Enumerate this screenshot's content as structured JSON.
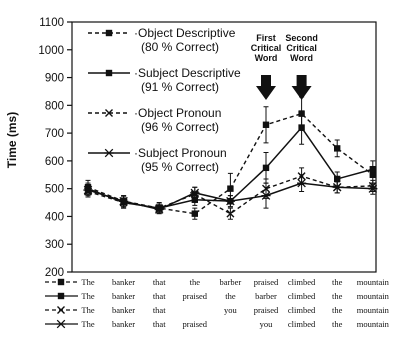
{
  "chart_data": {
    "type": "line",
    "ylabel": "Time (ms)",
    "ylim": [
      200,
      1100
    ],
    "yticks": [
      200,
      300,
      400,
      500,
      600,
      700,
      800,
      900,
      1000,
      1100
    ],
    "x": [
      1,
      2,
      3,
      4,
      5,
      6,
      7,
      8,
      9
    ],
    "grid": false,
    "legend_position": "top-left",
    "annotations": [
      {
        "text_lines": [
          "First",
          "Critical",
          "Word"
        ],
        "x": 6
      },
      {
        "text_lines": [
          "Second",
          "Critical",
          "Word"
        ],
        "x": 7
      }
    ],
    "series": [
      {
        "name": "Object Descriptive",
        "accuracy": "(80 % Correct)",
        "style": "dashed",
        "marker": "square",
        "values": [
          505,
          455,
          430,
          410,
          500,
          730,
          770,
          645,
          550
        ],
        "errors": [
          25,
          20,
          20,
          20,
          55,
          65,
          60,
          30,
          30
        ],
        "words": [
          "The",
          "banker",
          "that",
          "the",
          "barber",
          "praised",
          "climbed",
          "the",
          "mountain"
        ]
      },
      {
        "name": "Subject Descriptive",
        "accuracy": "(91 % Correct)",
        "style": "solid",
        "marker": "square",
        "values": [
          500,
          450,
          430,
          460,
          455,
          575,
          720,
          535,
          570
        ],
        "errors": [
          20,
          20,
          15,
          20,
          20,
          55,
          60,
          25,
          30
        ],
        "words": [
          "The",
          "banker",
          "that",
          "praised",
          "the",
          "barber",
          "climbed",
          "the",
          "mountain"
        ]
      },
      {
        "name": "Object Pronoun",
        "accuracy": "(96 % Correct)",
        "style": "dashed",
        "marker": "x",
        "values": [
          490,
          450,
          430,
          480,
          410,
          500,
          545,
          505,
          510
        ],
        "errors": [
          20,
          20,
          15,
          25,
          20,
          35,
          30,
          20,
          20
        ],
        "words": [
          "The",
          "banker",
          "that",
          "",
          "you",
          "praised",
          "climbed",
          "the",
          "mountain"
        ]
      },
      {
        "name": "Subject Pronoun",
        "accuracy": "(95 % Correct)",
        "style": "solid",
        "marker": "asterisk",
        "values": [
          495,
          455,
          425,
          485,
          455,
          475,
          520,
          505,
          500
        ],
        "errors": [
          20,
          20,
          15,
          20,
          20,
          45,
          30,
          20,
          20
        ],
        "words": [
          "The",
          "banker",
          "that",
          "praised",
          "",
          "you",
          "climbed",
          "the",
          "mountain"
        ]
      }
    ],
    "colors": {
      "line": "#111111",
      "background": "#ffffff"
    }
  }
}
